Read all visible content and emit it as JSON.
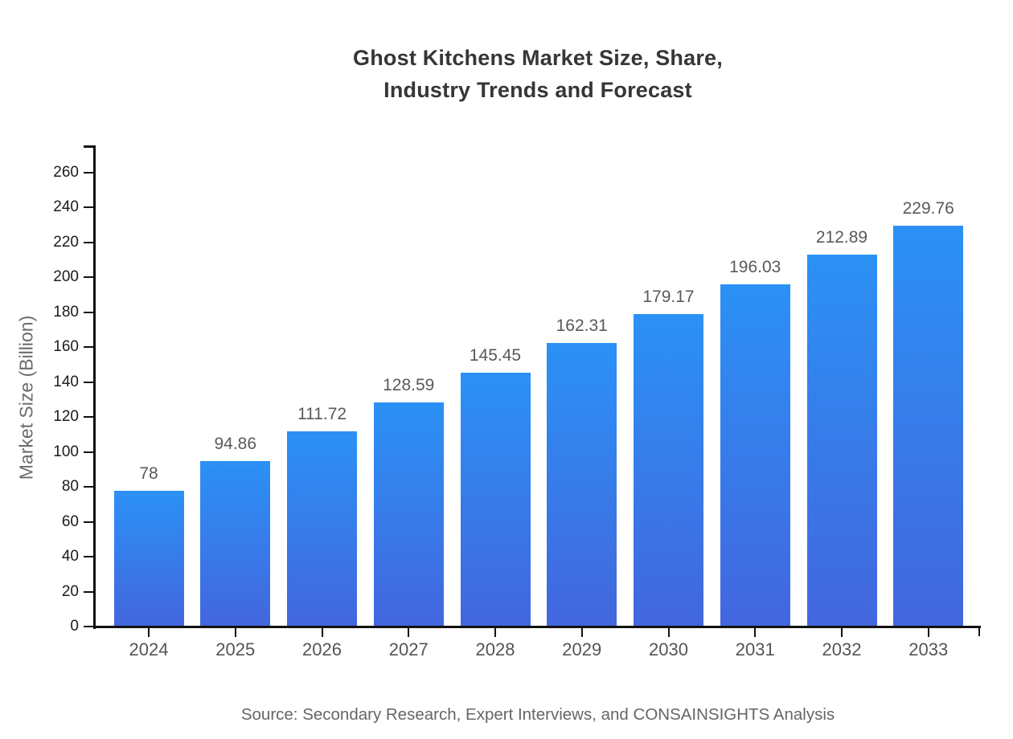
{
  "title": {
    "line1": "Ghost Kitchens Market Size, Share,",
    "line2": "Industry Trends and Forecast"
  },
  "source": "Source: Secondary Research, Expert Interviews, and CONSAINSIGHTS Analysis",
  "chart_data": {
    "type": "bar",
    "title": "Ghost Kitchens Market Size, Share, Industry Trends and Forecast",
    "categories": [
      "2024",
      "2025",
      "2026",
      "2027",
      "2028",
      "2029",
      "2030",
      "2031",
      "2032",
      "2033"
    ],
    "values": [
      78,
      94.86,
      111.72,
      128.59,
      145.45,
      162.31,
      179.17,
      196.03,
      212.89,
      229.76
    ],
    "value_labels": [
      "78",
      "94.86",
      "111.72",
      "128.59",
      "145.45",
      "162.31",
      "179.17",
      "196.03",
      "212.89",
      "229.76"
    ],
    "xlabel": "",
    "ylabel": "Market Size (Billion)",
    "ylim": [
      0,
      275
    ],
    "yticks": [
      0,
      20,
      40,
      60,
      80,
      100,
      120,
      140,
      160,
      180,
      200,
      220,
      240,
      260
    ],
    "grid": false,
    "legend": false,
    "colors": {
      "bar_gradient_top": "#2B91F5",
      "bar_gradient_bottom": "#4366DE",
      "axis": "#111111",
      "y_tick_label": "#1c1c1c",
      "x_tick_label": "#545454",
      "value_label": "#595959",
      "title": "#363636",
      "axis_title": "#6b6b6b",
      "source": "#666666"
    }
  }
}
